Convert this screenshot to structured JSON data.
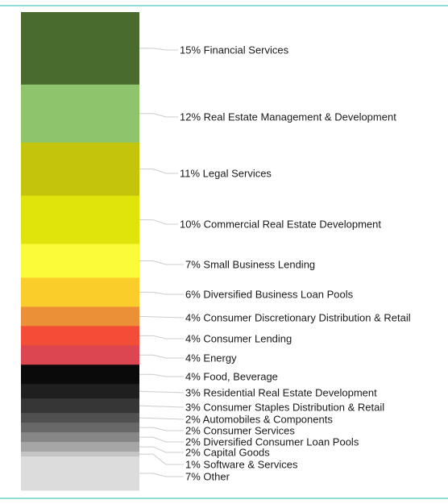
{
  "chart_data": {
    "type": "bar",
    "subtype": "stacked-100-single-column",
    "unit": "%",
    "legend": "labels-right",
    "grid": false,
    "segments": [
      {
        "label": "Financial Services",
        "value": 15,
        "color": "#4a6b2e"
      },
      {
        "label": "Real Estate Management & Development",
        "value": 12,
        "color": "#8dc46c"
      },
      {
        "label": "Legal Services",
        "value": 11,
        "color": "#c4c40c"
      },
      {
        "label": "Commercial Real Estate Development",
        "value": 10,
        "color": "#e0e40a"
      },
      {
        "label": "Small Business Lending",
        "value": 7,
        "color": "#fbfb3a"
      },
      {
        "label": "Diversified Business Loan Pools",
        "value": 6,
        "color": "#fbcd2a"
      },
      {
        "label": "Consumer Discretionary Distribution & Retail",
        "value": 4,
        "color": "#ec9038"
      },
      {
        "label": "Consumer Lending",
        "value": 4,
        "color": "#f44d37"
      },
      {
        "label": "Energy",
        "value": 4,
        "color": "#dc4650"
      },
      {
        "label": "Food, Beverage",
        "value": 4,
        "color": "#0a0a0a"
      },
      {
        "label": "Residential Real Estate Development",
        "value": 3,
        "color": "#1f1f1f"
      },
      {
        "label": "Consumer Staples Distribution & Retail",
        "value": 3,
        "color": "#363636"
      },
      {
        "label": "Automobiles & Components",
        "value": 2,
        "color": "#505050"
      },
      {
        "label": "Consumer Services",
        "value": 2,
        "color": "#686868"
      },
      {
        "label": "Diversified Consumer Loan Pools",
        "value": 2,
        "color": "#868686"
      },
      {
        "label": "Capital Goods",
        "value": 2,
        "color": "#a6a6a6"
      },
      {
        "label": "Software & Services",
        "value": 1,
        "color": "#c4c4c4"
      },
      {
        "label": "Other",
        "value": 7,
        "color": "#dcdcdc"
      }
    ]
  }
}
